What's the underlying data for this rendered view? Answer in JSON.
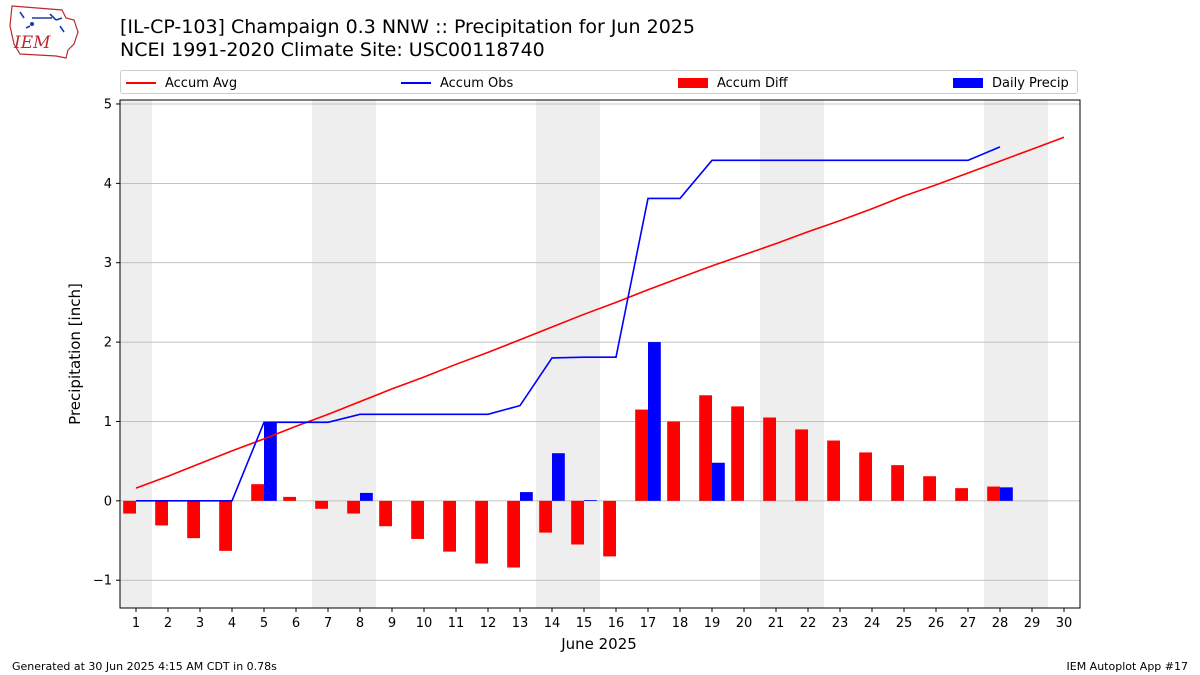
{
  "header": {
    "title_line1": "[IL-CP-103] Champaign 0.3 NNW :: Precipitation for Jun 2025",
    "title_line2": "NCEI 1991-2020 Climate Site: USC00118740",
    "logo_text": "IEM"
  },
  "footer": {
    "generated": "Generated at 30 Jun 2025 4:15 AM CDT in 0.78s",
    "app": "IEM Autoplot App #17"
  },
  "colors": {
    "avg": "#ff0000",
    "obs": "#0000ff",
    "diff": "#ff0000",
    "precip": "#0000ff",
    "weekend_shade": "#eeeeee",
    "grid": "#b0b0b0"
  },
  "chart_data": {
    "type": "bar",
    "title": "[IL-CP-103] Champaign 0.3 NNW :: Precipitation for Jun 2025",
    "subtitle": "NCEI 1991-2020 Climate Site: USC00118740",
    "xlabel": "June 2025",
    "ylabel": "Precipitation [inch]",
    "xlim": [
      0.5,
      30.5
    ],
    "ylim": [
      -1.35,
      5.05
    ],
    "yticks": [
      -1,
      0,
      1,
      2,
      3,
      4,
      5
    ],
    "ytick_labels": [
      "−1",
      "0",
      "1",
      "2",
      "3",
      "4",
      "5"
    ],
    "days": [
      1,
      2,
      3,
      4,
      5,
      6,
      7,
      8,
      9,
      10,
      11,
      12,
      13,
      14,
      15,
      16,
      17,
      18,
      19,
      20,
      21,
      22,
      23,
      24,
      25,
      26,
      27,
      28,
      29,
      30
    ],
    "legend_position": "top (above plot, 4 columns)",
    "grid": "horizontal",
    "shaded_weekends": [
      [
        1,
        1
      ],
      [
        7,
        8
      ],
      [
        14,
        15
      ],
      [
        21,
        22
      ],
      [
        28,
        29
      ]
    ],
    "series": [
      {
        "name": "Accum Avg",
        "kind": "line",
        "values": [
          0.16,
          0.31,
          0.47,
          0.63,
          0.78,
          0.94,
          1.09,
          1.25,
          1.41,
          1.56,
          1.72,
          1.87,
          2.03,
          2.19,
          2.35,
          2.5,
          2.66,
          2.81,
          2.96,
          3.1,
          3.24,
          3.39,
          3.53,
          3.68,
          3.84,
          3.98,
          4.13,
          4.28,
          4.43,
          4.58
        ]
      },
      {
        "name": "Accum Obs",
        "kind": "line",
        "values": [
          0.0,
          0.0,
          0.0,
          0.0,
          0.99,
          0.99,
          0.99,
          1.09,
          1.09,
          1.09,
          1.09,
          1.09,
          1.2,
          1.8,
          1.81,
          1.81,
          3.81,
          3.81,
          4.29,
          4.29,
          4.29,
          4.29,
          4.29,
          4.29,
          4.29,
          4.29,
          4.29,
          4.46,
          null,
          null
        ]
      },
      {
        "name": "Accum Diff",
        "kind": "bar",
        "values": [
          -0.16,
          -0.31,
          -0.47,
          -0.63,
          0.21,
          0.05,
          -0.1,
          -0.16,
          -0.32,
          -0.48,
          -0.64,
          -0.79,
          -0.84,
          -0.4,
          -0.55,
          -0.7,
          1.15,
          1.0,
          1.33,
          1.19,
          1.05,
          0.9,
          0.76,
          0.61,
          0.45,
          0.31,
          0.16,
          0.18,
          null,
          null
        ]
      },
      {
        "name": "Daily Precip",
        "kind": "bar",
        "values": [
          0,
          0,
          0,
          0,
          0.99,
          0,
          0,
          0.1,
          0,
          0,
          0,
          0,
          0.11,
          0.6,
          0.01,
          0,
          2.0,
          0,
          0.48,
          0,
          0,
          0,
          0,
          0,
          0,
          0,
          0,
          0.17,
          null,
          null
        ]
      }
    ]
  }
}
